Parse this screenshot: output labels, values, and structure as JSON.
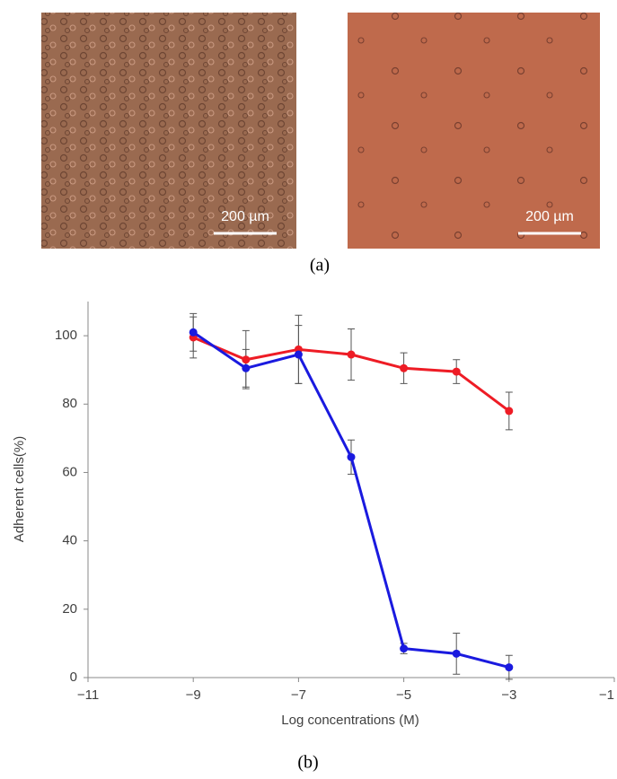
{
  "figure": {
    "panel_a": {
      "label": "(a)",
      "scale_bars": [
        "200 µm",
        "200 µm"
      ]
    }
  },
  "chart_data": {
    "type": "line",
    "panel_label": "(b)",
    "x_label": "Log concentrations (M)",
    "y_label": "Adherent cells(%)",
    "x": [
      -9,
      -8,
      -7,
      -6,
      -5,
      -4,
      -3
    ],
    "series": [
      {
        "color": "#ee1c25",
        "values": [
          99.5,
          93,
          96,
          94.5,
          90.5,
          89.5,
          78
        ],
        "errors": [
          6,
          8.5,
          10,
          7.5,
          4.5,
          3.5,
          5.5
        ]
      },
      {
        "color": "#1a1adf",
        "values": [
          101,
          90.5,
          94.5,
          64.5,
          8.5,
          7,
          3
        ],
        "errors": [
          5.5,
          5.5,
          8.5,
          5,
          1.5,
          6,
          3.5
        ]
      }
    ],
    "xlim": [
      -11,
      -1
    ],
    "xticks": [
      {
        "value": -11,
        "label": "−11"
      },
      {
        "value": -9,
        "label": "−9"
      },
      {
        "value": -7,
        "label": "−7"
      },
      {
        "value": -5,
        "label": "−5"
      },
      {
        "value": -3,
        "label": "−3"
      },
      {
        "value": -1,
        "label": "−1"
      }
    ],
    "ylim": [
      0,
      110
    ],
    "yticks": [
      0,
      20,
      40,
      60,
      80,
      100
    ],
    "grid": false
  }
}
